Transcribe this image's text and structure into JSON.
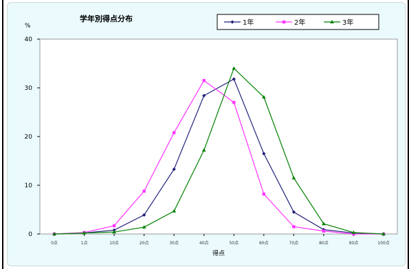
{
  "chart_data": {
    "type": "line",
    "title": "学年別得点分布",
    "ylabel": "%",
    "xlabel": "得点",
    "ylim": [
      0,
      40
    ],
    "yticks": [
      0,
      10,
      20,
      30,
      40
    ],
    "categories": [
      "0点",
      "1点",
      "10点",
      "20点",
      "30点",
      "40点",
      "50点",
      "60点",
      "70点",
      "80点",
      "90点",
      "100点"
    ],
    "series": [
      {
        "name": "1年",
        "color": "#1f1f7a",
        "values": [
          0,
          0.2,
          0.8,
          3.9,
          13.3,
          28.4,
          31.8,
          16.5,
          4.5,
          0.9,
          0.2,
          0
        ]
      },
      {
        "name": "2年",
        "color": "#ff33ff",
        "values": [
          0,
          0.3,
          1.7,
          8.8,
          20.8,
          31.5,
          27.0,
          8.2,
          1.5,
          0.6,
          0,
          0
        ]
      },
      {
        "name": "3年",
        "color": "#008000",
        "values": [
          0,
          0.2,
          0.4,
          1.4,
          4.7,
          17.2,
          34.0,
          28.1,
          11.5,
          2.1,
          0.3,
          0
        ]
      }
    ],
    "legend_position": "top-right",
    "grid": false
  }
}
